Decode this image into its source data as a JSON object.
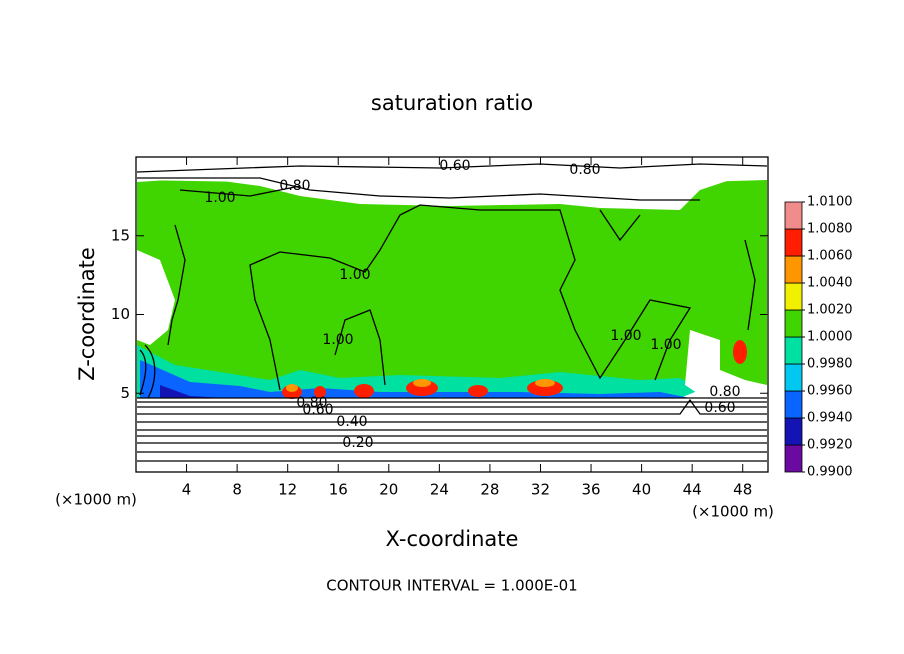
{
  "chart_data": {
    "type": "contour",
    "title": "saturation ratio",
    "x_label": "X-coordinate",
    "y_label": "Z-coordinate",
    "x_unit": "(×1000 m)",
    "y_unit": "(×1000 m)",
    "footer": "CONTOUR INTERVAL = 1.000E-01",
    "xlim": [
      0,
      50
    ],
    "ylim": [
      0,
      20
    ],
    "xticks": [
      4,
      8,
      12,
      16,
      20,
      24,
      28,
      32,
      36,
      40,
      44,
      48
    ],
    "yticks": [
      5,
      10,
      15
    ],
    "colorbar": {
      "ticks": [
        {
          "value": 0.99,
          "label": "0.9900"
        },
        {
          "value": 0.992,
          "label": "0.9920"
        },
        {
          "value": 0.994,
          "label": "0.9940"
        },
        {
          "value": 0.996,
          "label": "0.9960"
        },
        {
          "value": 0.998,
          "label": "0.9980"
        },
        {
          "value": 1.0,
          "label": "1.0000"
        },
        {
          "value": 1.002,
          "label": "1.0020"
        },
        {
          "value": 1.004,
          "label": "1.0040"
        },
        {
          "value": 1.006,
          "label": "1.0060"
        },
        {
          "value": 1.008,
          "label": "1.0080"
        },
        {
          "value": 1.01,
          "label": "1.0100"
        }
      ],
      "colors": [
        "#6a0aa0",
        "#1414b4",
        "#0a64ff",
        "#00c8f0",
        "#00e0a0",
        "#40d400",
        "#f0f000",
        "#ff9600",
        "#ff1e00",
        "#f08c8c"
      ]
    },
    "contour_labels": [
      {
        "value": 0.6,
        "label": "0.60"
      },
      {
        "value": 0.8,
        "label": "0.80"
      },
      {
        "value": 1.0,
        "label": "1.00"
      },
      {
        "value": 0.8,
        "label": "0.80"
      },
      {
        "value": 1.0,
        "label": "1.00"
      },
      {
        "value": 1.0,
        "label": "1.00"
      },
      {
        "value": 1.0,
        "label": "1.00"
      },
      {
        "value": 1.0,
        "label": "1.00"
      },
      {
        "value": 0.8,
        "label": "0.80"
      },
      {
        "value": 0.6,
        "label": "0.60"
      },
      {
        "value": 0.4,
        "label": "0.40"
      },
      {
        "value": 0.2,
        "label": "0.20"
      },
      {
        "value": 0.8,
        "label": "0.80"
      },
      {
        "value": 0.6,
        "label": "0.60"
      }
    ]
  }
}
